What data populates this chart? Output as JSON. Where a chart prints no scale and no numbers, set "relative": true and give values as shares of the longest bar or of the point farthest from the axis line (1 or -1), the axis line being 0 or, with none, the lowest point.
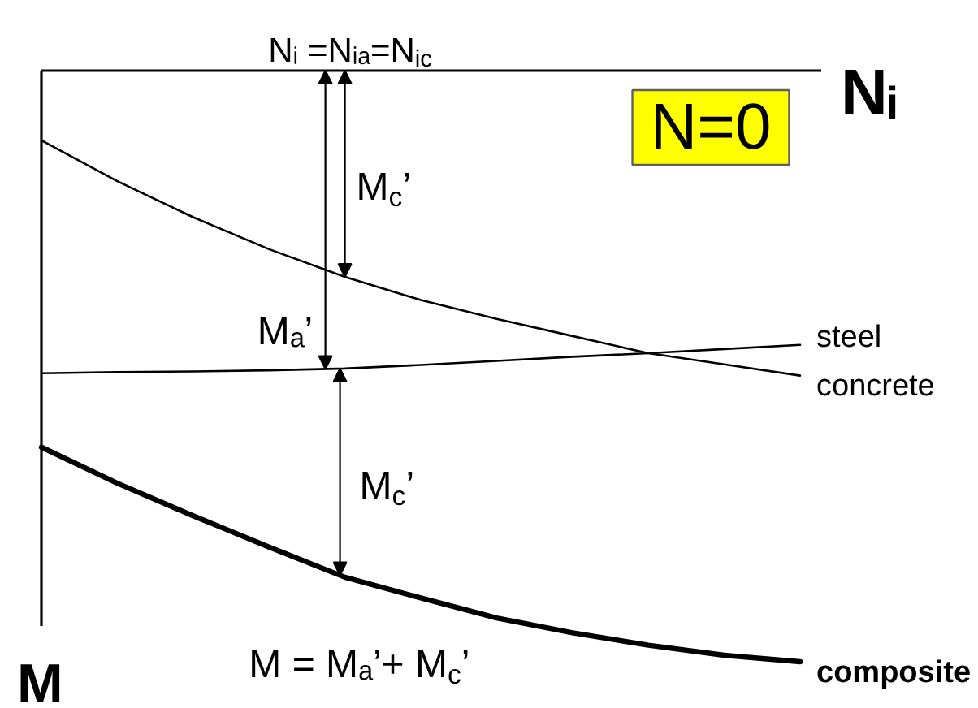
{
  "chart_data": {
    "type": "line",
    "relative": true,
    "xlabel": "Nᵢ",
    "ylabel": "M",
    "categories": [
      null,
      null,
      null,
      null,
      null,
      null,
      null,
      null,
      null,
      null,
      null
    ],
    "series": [
      {
        "name": "steel",
        "color": "#000000",
        "values": [
          -0.512,
          -0.51,
          -0.509,
          -0.507,
          -0.504,
          -0.498,
          -0.491,
          -0.484,
          -0.478,
          -0.471,
          -0.464
        ]
      },
      {
        "name": "concrete",
        "color": "#000000",
        "values": [
          -0.118,
          -0.187,
          -0.248,
          -0.302,
          -0.349,
          -0.388,
          -0.42,
          -0.449,
          -0.478,
          -0.497,
          -0.516
        ]
      },
      {
        "name": "composite",
        "color": "#000000",
        "values": [
          -0.637,
          -0.698,
          -0.753,
          -0.806,
          -0.857,
          -0.892,
          -0.926,
          -0.951,
          -0.972,
          -0.989,
          -1.0
        ]
      }
    ],
    "annotations": [
      "Nᵢ =Nᵢₐ=N$_{ic}$",
      "N=0",
      "M$_{c}$’",
      "Mₐ’",
      "M$_{c}$’",
      "M = Mₐ’+ M$_{c}$’"
    ]
  }
}
